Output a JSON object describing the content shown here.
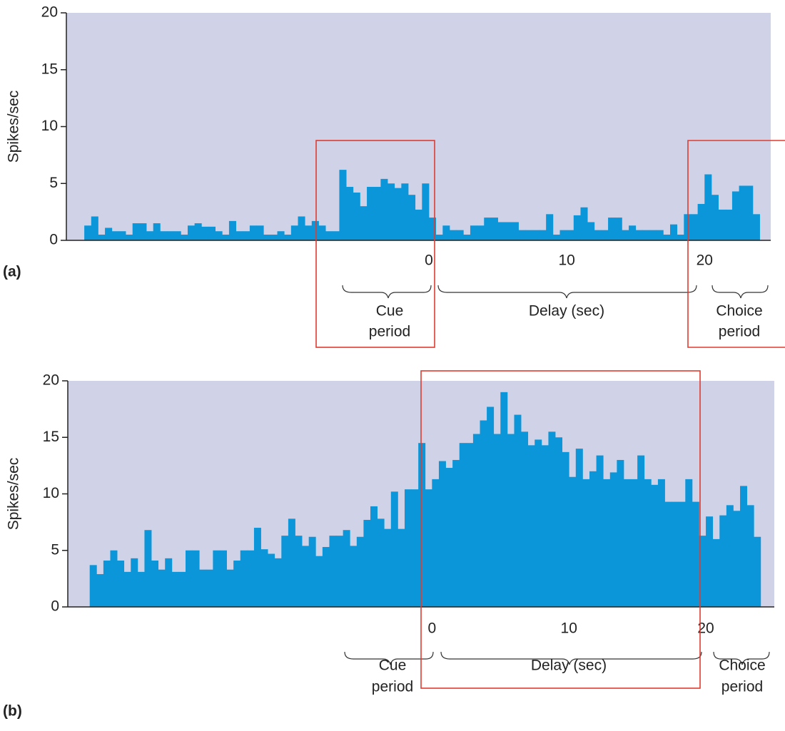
{
  "chart_data": [
    {
      "type": "histogram",
      "panel_label": "(a)",
      "y_label": "Spikes/sec",
      "color": "#0a96d8",
      "background": "#d0d3e8",
      "bins": [
        -25,
        -24.5,
        -24,
        -23.5,
        -23,
        -22.5,
        -22,
        -21.5,
        -21,
        -20.5,
        -20,
        -19.5,
        -19,
        -18.5,
        -18,
        -17.5,
        -17,
        -16.5,
        -16,
        -15.5,
        -15,
        -14.5,
        -14,
        -13.5,
        -13,
        -12.5,
        -12,
        -11.5,
        -11,
        -10.5,
        -10,
        -9.5,
        -9,
        -8.5,
        -8,
        -7.5,
        -7,
        -6.5,
        -6,
        -5.5,
        -5,
        -4.5,
        -4,
        -3.5,
        -3,
        -2.5,
        -2,
        -1.5,
        -1,
        -0.5,
        0,
        0.5,
        1,
        1.5,
        2,
        2.5,
        3,
        3.5,
        4,
        4.5,
        5,
        5.5,
        6,
        6.5,
        7,
        7.5,
        8,
        8.5,
        9,
        9.5,
        10,
        10.5,
        11,
        11.5,
        12,
        12.5,
        13,
        13.5,
        14,
        14.5,
        15,
        15.5,
        16,
        16.5,
        17,
        17.5,
        18,
        18.5,
        19,
        19.5,
        20,
        20.5,
        21,
        21.5,
        22,
        22.5,
        23,
        23.5,
        24
      ],
      "values": [
        1.3,
        2.1,
        0.5,
        1.1,
        0.8,
        0.8,
        0.5,
        1.5,
        1.5,
        0.8,
        1.5,
        0.8,
        0.8,
        0.8,
        0.5,
        1.3,
        1.5,
        1.2,
        1.2,
        0.8,
        0.5,
        1.7,
        0.8,
        0.8,
        1.3,
        1.3,
        0.5,
        0.5,
        0.8,
        0.5,
        1.3,
        2.1,
        1.3,
        1.7,
        1.3,
        0.8,
        0.8,
        6.2,
        4.7,
        4.2,
        3.0,
        4.7,
        4.7,
        5.4,
        5.0,
        4.6,
        5.0,
        4.0,
        2.7,
        5.0,
        2.0,
        0.5,
        1.3,
        0.9,
        0.9,
        0.5,
        1.3,
        1.3,
        2.0,
        2.0,
        1.6,
        1.6,
        1.6,
        0.9,
        0.9,
        0.9,
        0.9,
        2.3,
        0.5,
        0.9,
        0.9,
        2.2,
        2.9,
        1.6,
        0.9,
        0.9,
        2.0,
        2.0,
        0.9,
        1.3,
        0.9,
        0.9,
        0.9,
        0.9,
        0.5,
        1.4,
        0.5,
        2.3,
        2.3,
        3.2,
        5.8,
        4.0,
        2.7,
        2.7,
        4.3,
        4.8,
        4.8,
        2.3
      ],
      "xlim": [
        -26.3,
        24.8
      ],
      "xticks": [
        0,
        10,
        20
      ],
      "ylim": [
        0,
        20
      ],
      "yticks": [
        0,
        5,
        10,
        15,
        20
      ],
      "annotations": [
        [
          "Cue",
          "period"
        ],
        [
          "Delay (sec)"
        ],
        [
          "Choice",
          "period"
        ]
      ]
    },
    {
      "type": "histogram",
      "panel_label": "(b)",
      "y_label": "Spikes/sec",
      "color": "#0a96d8",
      "background": "#d0d3e8",
      "bins": [
        -25,
        -24.5,
        -24,
        -23.5,
        -23,
        -22.5,
        -22,
        -21.5,
        -21,
        -20.5,
        -20,
        -19.5,
        -19,
        -18.5,
        -18,
        -17.5,
        -17,
        -16.5,
        -16,
        -15.5,
        -15,
        -14.5,
        -14,
        -13.5,
        -13,
        -12.5,
        -12,
        -11.5,
        -11,
        -10.5,
        -10,
        -9.5,
        -9,
        -8.5,
        -8,
        -7.5,
        -7,
        -6.5,
        -6,
        -5.5,
        -5,
        -4.5,
        -4,
        -3.5,
        -3,
        -2.5,
        -2,
        -1.5,
        -1,
        -0.5,
        0,
        0.5,
        1,
        1.5,
        2,
        2.5,
        3,
        3.5,
        4,
        4.5,
        5,
        5.5,
        6,
        6.5,
        7,
        7.5,
        8,
        8.5,
        9,
        9.5,
        10,
        10.5,
        11,
        11.5,
        12,
        12.5,
        13,
        13.5,
        14,
        14.5,
        15,
        15.5,
        16,
        16.5,
        17,
        17.5,
        18,
        18.5,
        19,
        19.5,
        20,
        20.5,
        21,
        21.5,
        22,
        22.5,
        23,
        23.5,
        24
      ],
      "values": [
        3.7,
        2.9,
        4.1,
        5.0,
        4.1,
        3.1,
        4.3,
        3.1,
        6.8,
        4.1,
        3.3,
        4.3,
        3.1,
        3.1,
        5.0,
        5.0,
        3.3,
        3.3,
        5.0,
        5.0,
        3.3,
        4.1,
        5.0,
        5.0,
        7.0,
        5.1,
        4.7,
        4.3,
        6.3,
        7.8,
        6.3,
        5.4,
        6.2,
        4.5,
        5.3,
        6.3,
        6.3,
        6.8,
        5.4,
        6.2,
        7.7,
        8.9,
        7.8,
        6.9,
        10.2,
        6.9,
        10.4,
        10.4,
        14.5,
        10.4,
        11.3,
        12.9,
        12.3,
        13.0,
        14.5,
        14.5,
        15.3,
        16.5,
        17.7,
        15.3,
        19.0,
        15.3,
        17.0,
        15.5,
        14.3,
        14.8,
        14.3,
        15.5,
        15.0,
        13.7,
        11.5,
        14.0,
        11.3,
        12.0,
        13.4,
        11.3,
        11.9,
        13.0,
        11.3,
        11.3,
        13.4,
        11.3,
        10.8,
        11.3,
        9.3,
        9.3,
        9.3,
        11.3,
        9.3,
        6.3,
        8.0,
        6.0,
        8.1,
        9.0,
        8.5,
        10.7,
        9.0,
        6.2
      ],
      "xlim": [
        -26.6,
        25.0
      ],
      "xticks": [
        0,
        10,
        20
      ],
      "ylim": [
        0,
        20
      ],
      "yticks": [
        0,
        5,
        10,
        15,
        20
      ],
      "annotations": [
        [
          "Cue",
          "period"
        ],
        [
          "Delay (sec)"
        ],
        [
          "Choice",
          "period"
        ]
      ]
    }
  ]
}
